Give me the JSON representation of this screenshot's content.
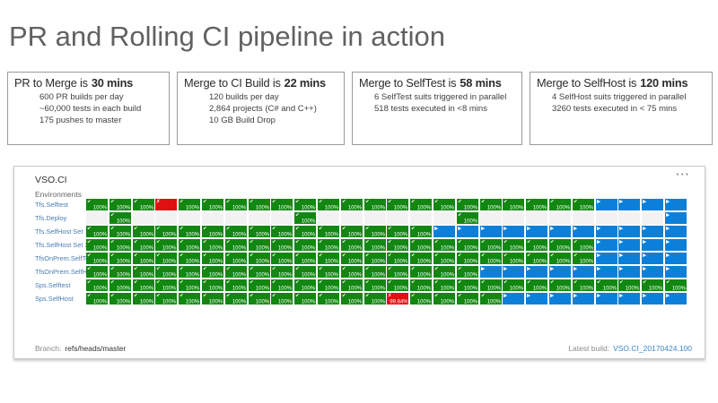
{
  "title": "PR and Rolling CI pipeline in action",
  "stat_boxes": [
    {
      "heading_prefix": "PR to Merge is",
      "heading_value": "30 mins",
      "lines": [
        "600 PR builds per day",
        "~60,000 tests in each build",
        "175 pushes to master"
      ]
    },
    {
      "heading_prefix": "Merge to CI Build is",
      "heading_value": "22 mins",
      "lines": [
        "120 builds per day",
        "2,864 projects (C# and C++)",
        "10 GB Build Drop"
      ]
    },
    {
      "heading_prefix": "Merge to SelfTest is",
      "heading_value": "58 mins",
      "lines": [
        "6 SelfTest suits triggered in parallel",
        "518 tests executed in <8 mins"
      ]
    },
    {
      "heading_prefix": "Merge to SelfHost is",
      "heading_value": "120 mins",
      "lines": [
        "4 SelfHost suits triggered in parallel",
        "3260 tests executed in < 75 mins"
      ]
    }
  ],
  "panel": {
    "title": "VSO.CI",
    "menu": "···",
    "environments_label": "Environments",
    "percent_label": "100%",
    "fail_percent": "99.84%",
    "columns": 26,
    "colors": {
      "green": "#128712",
      "blue": "#0c80d8",
      "red": "#e01010",
      "empty": "#f2f2f2",
      "link": "#4a7db3"
    },
    "rows": [
      {
        "label": "Tfs.Selftest",
        "pattern": "GGGXGGGGGGGGGGGGGGGGGGBBBB"
      },
      {
        "label": "Tfs.Deploy",
        "pattern": "EGEEEEEEEGEEEEEEGEEEEEEEEB"
      },
      {
        "label": "Tfs.SelfHost Set 1",
        "pattern": "GGGGGGGGGGGGGGGBBBBBBBBBBB"
      },
      {
        "label": "Tfs.SelfHost Set 2",
        "pattern": "GGGGGGGGGGGGGGGGGGGGGGBBBB"
      },
      {
        "label": "TfsOnPrem.SelfTest",
        "pattern": "GGGGGGGGGGGGGGGGGGGGGGBBBB"
      },
      {
        "label": "TfsOnPrem.SelfHost",
        "pattern": "GGGGGGGGGGGGGGGGGBBBBBBBBB"
      },
      {
        "label": "Sps.Selftest",
        "pattern": "GGGGGGGGGGGGGGGGGGGGGGGGGG"
      },
      {
        "label": "Sps.SelfHost",
        "pattern": "GGGGGGGGGGGGGFGGGGBBBBBBBB"
      }
    ],
    "footer": {
      "branch_label": "Branch:",
      "branch_value": "refs/heads/master",
      "latest_label": "Latest build:",
      "latest_value": "VSO.CI_20170424.100"
    }
  }
}
